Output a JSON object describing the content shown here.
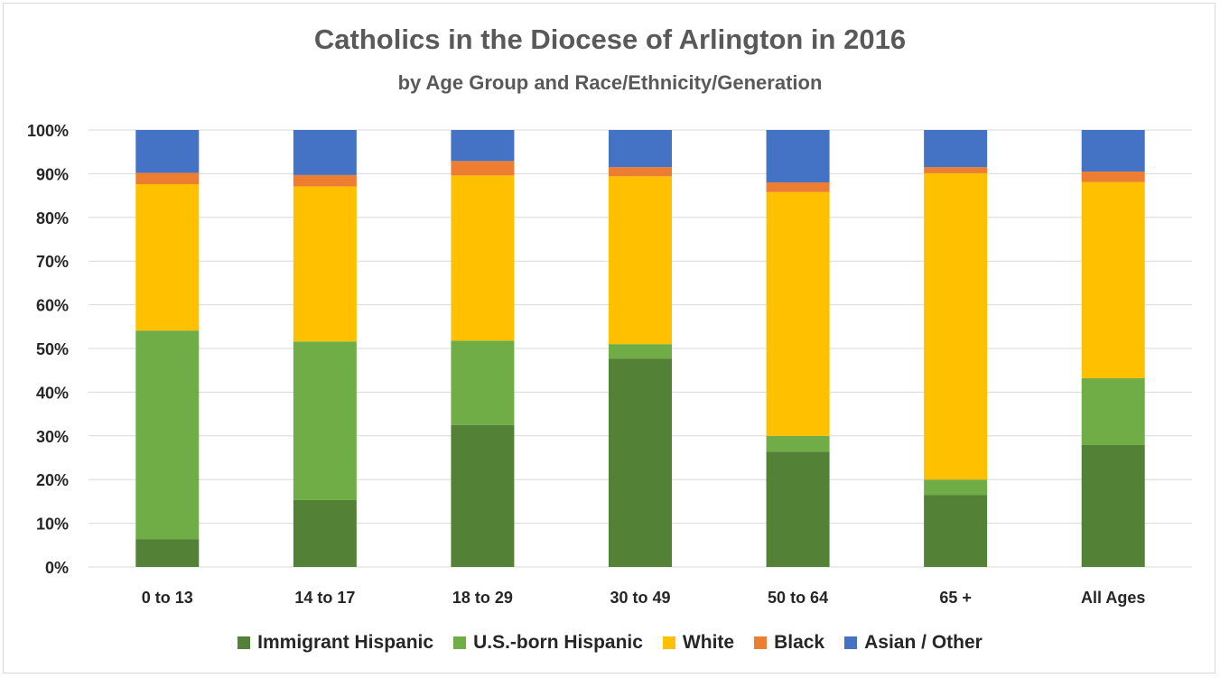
{
  "chart_data": {
    "type": "bar",
    "stacked": true,
    "title": "Catholics in the Diocese of Arlington in 2016",
    "subtitle": "by Age Group and Race/Ethnicity/Generation",
    "categories": [
      "0 to 13",
      "14 to 17",
      "18 to 29",
      "30 to 49",
      "50 to 64",
      "65 +",
      "All Ages"
    ],
    "ylim": [
      0,
      100
    ],
    "yticks": [
      "0%",
      "10%",
      "20%",
      "30%",
      "40%",
      "50%",
      "60%",
      "70%",
      "80%",
      "90%",
      "100%"
    ],
    "grid": true,
    "legend_position": "bottom",
    "series": [
      {
        "name": "Immigrant Hispanic",
        "color": "#538135",
        "values": [
          6.3,
          15.3,
          32.5,
          47.7,
          26.4,
          16.5,
          27.9
        ]
      },
      {
        "name": "U.S.-born Hispanic",
        "color": "#70AD47",
        "values": [
          47.8,
          36.3,
          19.3,
          3.3,
          3.6,
          3.5,
          15.3
        ]
      },
      {
        "name": "White",
        "color": "#FFC000",
        "values": [
          33.5,
          35.5,
          37.8,
          38.4,
          55.8,
          70.1,
          44.9
        ]
      },
      {
        "name": "Black",
        "color": "#ED7D31",
        "values": [
          2.6,
          2.6,
          3.3,
          2.1,
          2.2,
          1.4,
          2.4
        ]
      },
      {
        "name": "Asian / Other",
        "color": "#4472C4",
        "values": [
          9.8,
          10.3,
          7.1,
          8.5,
          12.0,
          8.5,
          9.5
        ]
      }
    ]
  }
}
